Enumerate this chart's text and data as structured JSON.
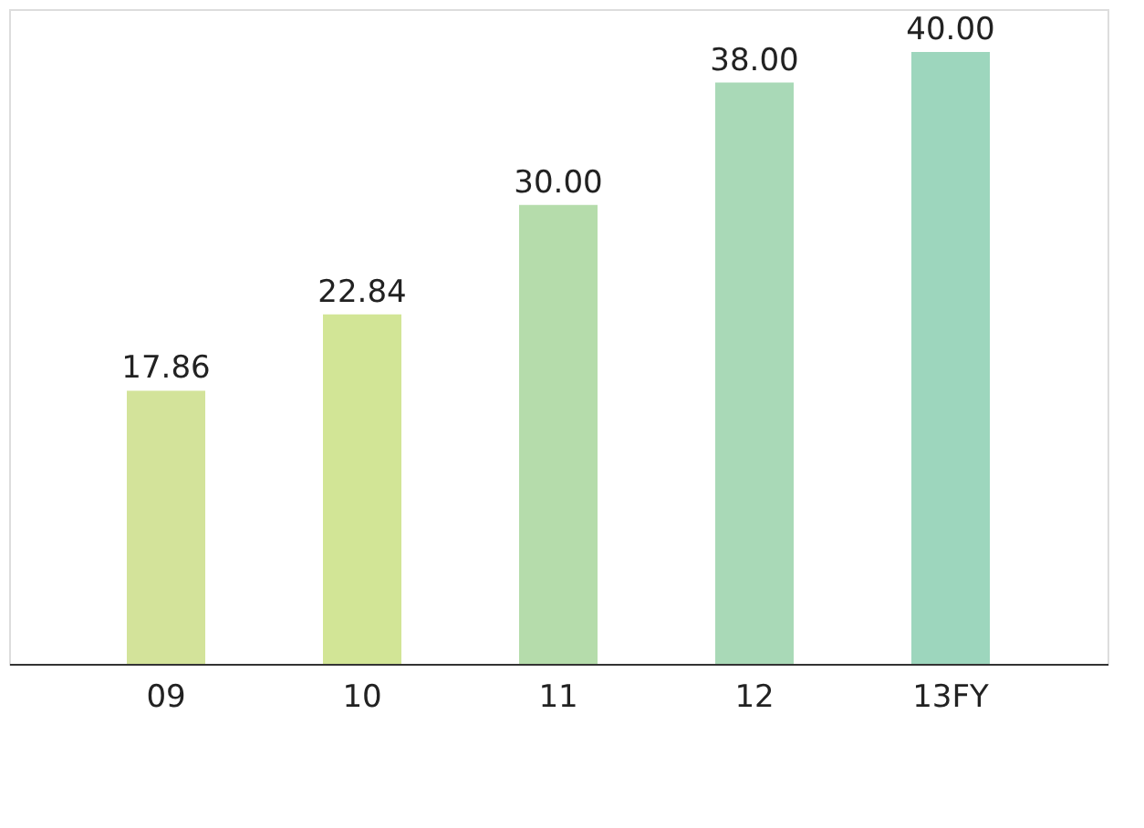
{
  "chart_data": {
    "type": "bar",
    "categories": [
      "09",
      "10",
      "11",
      "12",
      "13FY"
    ],
    "values": [
      17.86,
      22.84,
      30.0,
      38.0,
      40.0
    ],
    "value_labels": [
      "17.86",
      "22.84",
      "30.00",
      "38.00",
      "40.00"
    ],
    "colors": [
      "#d3e39a",
      "#d2e596",
      "#b5dcab",
      "#a9d9b7",
      "#9dd6bd"
    ],
    "grid": false
  }
}
